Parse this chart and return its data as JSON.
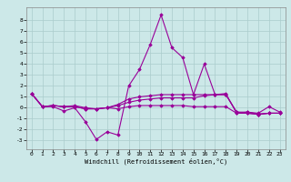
{
  "title": "",
  "xlabel": "Windchill (Refroidissement éolien,°C)",
  "background_color": "#cce8e8",
  "grid_color": "#aacccc",
  "line_color": "#990099",
  "xlim": [
    -0.5,
    23.5
  ],
  "ylim": [
    -3.8,
    9.2
  ],
  "yticks": [
    -3,
    -2,
    -1,
    0,
    1,
    2,
    3,
    4,
    5,
    6,
    7,
    8
  ],
  "xticks": [
    0,
    1,
    2,
    3,
    4,
    5,
    6,
    7,
    8,
    9,
    10,
    11,
    12,
    13,
    14,
    15,
    16,
    17,
    18,
    19,
    20,
    21,
    22,
    23
  ],
  "series": [
    [
      1.3,
      0.1,
      0.1,
      -0.3,
      0.0,
      -1.3,
      -2.9,
      -2.2,
      -2.5,
      2.0,
      3.5,
      5.8,
      8.5,
      5.5,
      4.6,
      1.2,
      4.0,
      1.2,
      1.3,
      -0.5,
      -0.4,
      -0.5,
      0.1,
      -0.4
    ],
    [
      1.3,
      0.1,
      0.2,
      0.1,
      0.1,
      -0.1,
      -0.1,
      0.0,
      0.3,
      0.8,
      1.0,
      1.1,
      1.2,
      1.2,
      1.2,
      1.2,
      1.2,
      1.2,
      1.2,
      -0.4,
      -0.4,
      -0.6,
      -0.5,
      -0.5
    ],
    [
      1.3,
      0.1,
      0.2,
      0.1,
      0.1,
      -0.1,
      -0.1,
      0.0,
      -0.1,
      0.1,
      0.2,
      0.2,
      0.2,
      0.2,
      0.2,
      0.1,
      0.1,
      0.1,
      0.1,
      -0.5,
      -0.5,
      -0.6,
      -0.5,
      -0.5
    ],
    [
      1.3,
      0.1,
      0.2,
      0.1,
      0.2,
      0.0,
      -0.1,
      0.0,
      0.2,
      0.5,
      0.7,
      0.8,
      0.9,
      0.9,
      0.9,
      0.9,
      1.1,
      1.2,
      1.2,
      -0.4,
      -0.5,
      -0.6,
      -0.5,
      -0.5
    ]
  ],
  "marker": "D",
  "markersize": 1.8,
  "linewidth": 0.8
}
